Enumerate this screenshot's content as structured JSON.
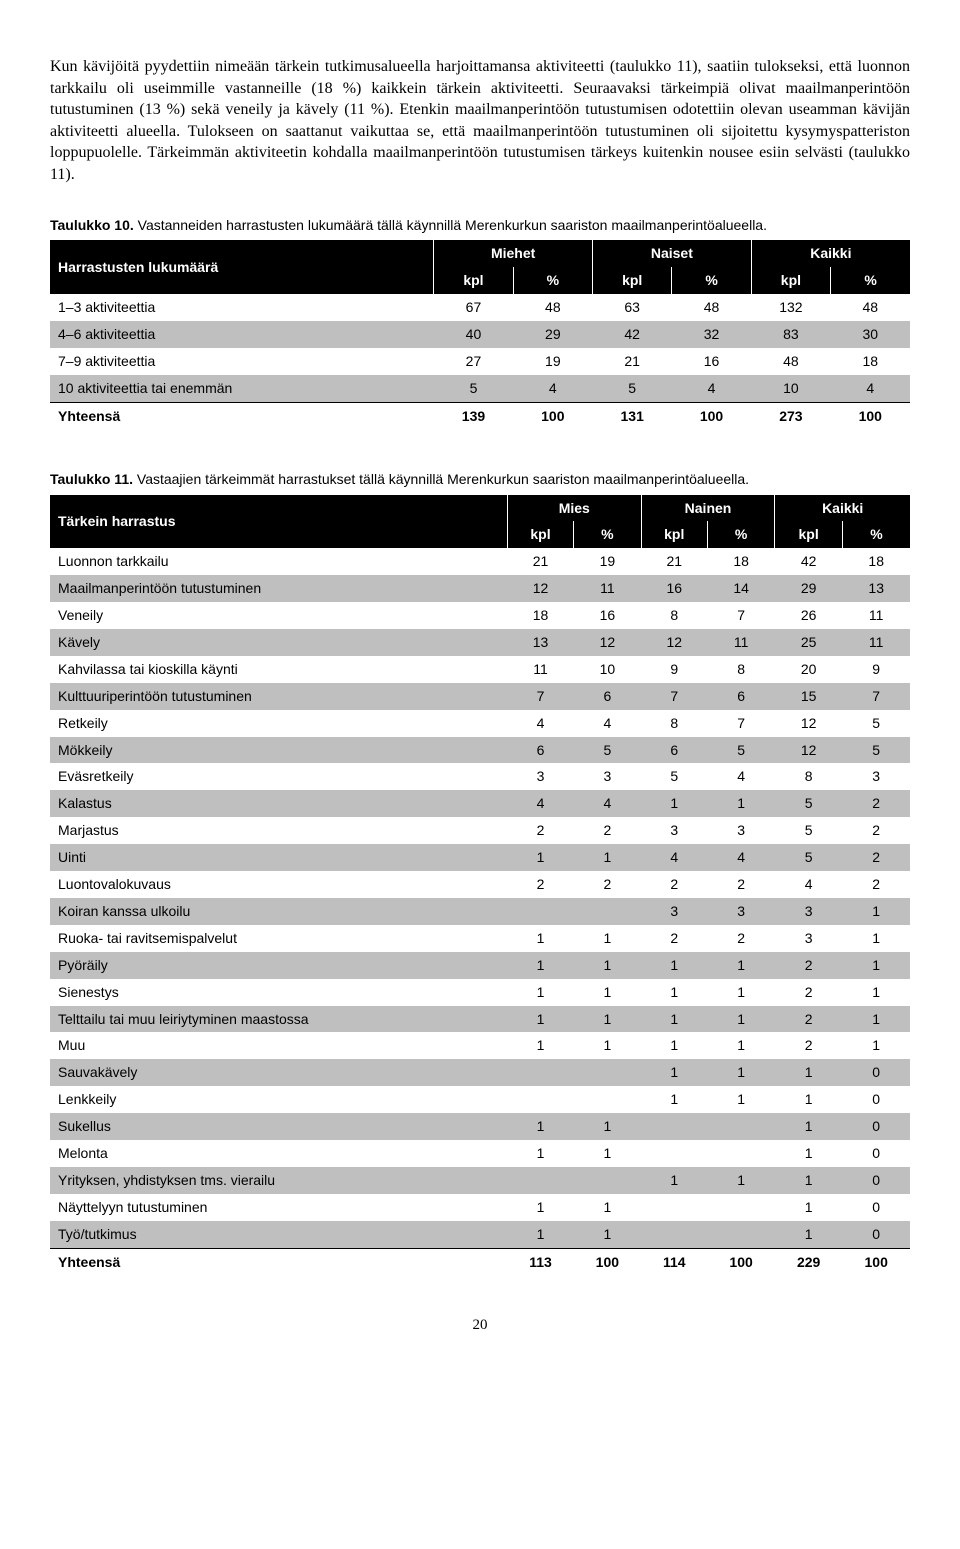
{
  "intro": "Kun kävijöitä pyydettiin nimeään tärkein tutkimusalueella harjoittamansa aktiviteetti (taulukko 11), saatiin tulokseksi, että luonnon tarkkailu oli useimmille vastanneille (18 %) kaikkein tärkein aktiviteetti. Seuraavaksi tärkeimpiä olivat maailmanperintöön tutustuminen (13 %) sekä veneily ja kävely (11 %). Etenkin maailmanperintöön tutustumisen odotettiin olevan useamman kävijän aktiviteetti alueella. Tulokseen on saattanut vaikuttaa se, että maailmanperintöön tutustuminen oli sijoitettu kysymyspatteriston loppupuolelle. Tärkeimmän aktiviteetin kohdalla maailmanperintöön tutustumisen tärkeys kuitenkin nousee esiin selvästi (taulukko 11).",
  "table10": {
    "caption_bold": "Taulukko 10.",
    "caption_rest": " Vastanneiden harrastusten lukumäärä tällä käynnillä Merenkurkun saariston maailmanperintöalueella.",
    "corner": "Harrastusten lukumäärä",
    "groups": [
      "Miehet",
      "Naiset",
      "Kaikki"
    ],
    "subcols": [
      "kpl",
      "%",
      "kpl",
      "%",
      "kpl",
      "%"
    ],
    "rows": [
      {
        "label": "1–3 aktiviteettia",
        "vals": [
          "67",
          "48",
          "63",
          "48",
          "132",
          "48"
        ],
        "shade": "white"
      },
      {
        "label": "4–6 aktiviteettia",
        "vals": [
          "40",
          "29",
          "42",
          "32",
          "83",
          "30"
        ],
        "shade": "grey"
      },
      {
        "label": "7–9 aktiviteettia",
        "vals": [
          "27",
          "19",
          "21",
          "16",
          "48",
          "18"
        ],
        "shade": "white"
      },
      {
        "label": "10 aktiviteettia tai enemmän",
        "vals": [
          "5",
          "4",
          "5",
          "4",
          "10",
          "4"
        ],
        "shade": "grey"
      }
    ],
    "total_label": "Yhteensä",
    "total_vals": [
      "139",
      "100",
      "131",
      "100",
      "273",
      "100"
    ]
  },
  "table11": {
    "caption_bold": "Taulukko 11.",
    "caption_rest": " Vastaajien tärkeimmät harrastukset tällä käynnillä Merenkurkun saariston maailmanperintöalueella.",
    "corner": "Tärkein harrastus",
    "groups": [
      "Mies",
      "Nainen",
      "Kaikki"
    ],
    "subcols": [
      "kpl",
      "%",
      "kpl",
      "%",
      "kpl",
      "%"
    ],
    "rows": [
      {
        "label": "Luonnon tarkkailu",
        "vals": [
          "21",
          "19",
          "21",
          "18",
          "42",
          "18"
        ],
        "shade": "white"
      },
      {
        "label": "Maailmanperintöön tutustuminen",
        "vals": [
          "12",
          "11",
          "16",
          "14",
          "29",
          "13"
        ],
        "shade": "grey"
      },
      {
        "label": "Veneily",
        "vals": [
          "18",
          "16",
          "8",
          "7",
          "26",
          "11"
        ],
        "shade": "white"
      },
      {
        "label": "Kävely",
        "vals": [
          "13",
          "12",
          "12",
          "11",
          "25",
          "11"
        ],
        "shade": "grey"
      },
      {
        "label": "Kahvilassa tai kioskilla käynti",
        "vals": [
          "11",
          "10",
          "9",
          "8",
          "20",
          "9"
        ],
        "shade": "white"
      },
      {
        "label": "Kulttuuriperintöön tutustuminen",
        "vals": [
          "7",
          "6",
          "7",
          "6",
          "15",
          "7"
        ],
        "shade": "grey"
      },
      {
        "label": "Retkeily",
        "vals": [
          "4",
          "4",
          "8",
          "7",
          "12",
          "5"
        ],
        "shade": "white"
      },
      {
        "label": "Mökkeily",
        "vals": [
          "6",
          "5",
          "6",
          "5",
          "12",
          "5"
        ],
        "shade": "grey"
      },
      {
        "label": "Eväsretkeily",
        "vals": [
          "3",
          "3",
          "5",
          "4",
          "8",
          "3"
        ],
        "shade": "white"
      },
      {
        "label": "Kalastus",
        "vals": [
          "4",
          "4",
          "1",
          "1",
          "5",
          "2"
        ],
        "shade": "grey"
      },
      {
        "label": "Marjastus",
        "vals": [
          "2",
          "2",
          "3",
          "3",
          "5",
          "2"
        ],
        "shade": "white"
      },
      {
        "label": "Uinti",
        "vals": [
          "1",
          "1",
          "4",
          "4",
          "5",
          "2"
        ],
        "shade": "grey"
      },
      {
        "label": "Luontovalokuvaus",
        "vals": [
          "2",
          "2",
          "2",
          "2",
          "4",
          "2"
        ],
        "shade": "white"
      },
      {
        "label": "Koiran kanssa ulkoilu",
        "vals": [
          "",
          "",
          "3",
          "3",
          "3",
          "1"
        ],
        "shade": "grey"
      },
      {
        "label": "Ruoka- tai ravitsemispalvelut",
        "vals": [
          "1",
          "1",
          "2",
          "2",
          "3",
          "1"
        ],
        "shade": "white"
      },
      {
        "label": "Pyöräily",
        "vals": [
          "1",
          "1",
          "1",
          "1",
          "2",
          "1"
        ],
        "shade": "grey"
      },
      {
        "label": "Sienestys",
        "vals": [
          "1",
          "1",
          "1",
          "1",
          "2",
          "1"
        ],
        "shade": "white"
      },
      {
        "label": "Telttailu tai muu leiriytyminen maastossa",
        "vals": [
          "1",
          "1",
          "1",
          "1",
          "2",
          "1"
        ],
        "shade": "grey"
      },
      {
        "label": "Muu",
        "vals": [
          "1",
          "1",
          "1",
          "1",
          "2",
          "1"
        ],
        "shade": "white"
      },
      {
        "label": "Sauvakävely",
        "vals": [
          "",
          "",
          "1",
          "1",
          "1",
          "0"
        ],
        "shade": "grey"
      },
      {
        "label": "Lenkkeily",
        "vals": [
          "",
          "",
          "1",
          "1",
          "1",
          "0"
        ],
        "shade": "white"
      },
      {
        "label": "Sukellus",
        "vals": [
          "1",
          "1",
          "",
          "",
          "1",
          "0"
        ],
        "shade": "grey"
      },
      {
        "label": "Melonta",
        "vals": [
          "1",
          "1",
          "",
          "",
          "1",
          "0"
        ],
        "shade": "white"
      },
      {
        "label": "Yrityksen, yhdistyksen tms. vierailu",
        "vals": [
          "",
          "",
          "1",
          "1",
          "1",
          "0"
        ],
        "shade": "grey"
      },
      {
        "label": "Näyttelyyn tutustuminen",
        "vals": [
          "1",
          "1",
          "",
          "",
          "1",
          "0"
        ],
        "shade": "white"
      },
      {
        "label": "Työ/tutkimus",
        "vals": [
          "1",
          "1",
          "",
          "",
          "1",
          "0"
        ],
        "shade": "grey"
      }
    ],
    "total_label": "Yhteensä",
    "total_vals": [
      "113",
      "100",
      "114",
      "100",
      "229",
      "100"
    ]
  },
  "page_number": "20"
}
